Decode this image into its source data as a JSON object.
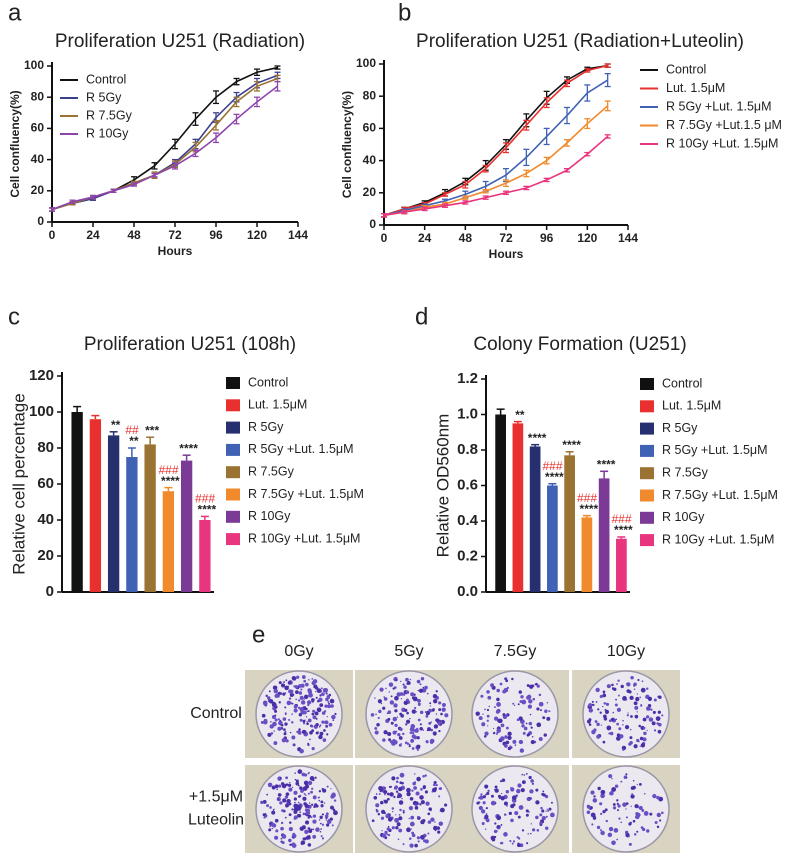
{
  "chart_data": [
    {
      "type": "line",
      "panel": "a",
      "title": "Proliferation U251 (Radiation)",
      "xlabel": "Hours",
      "ylabel": "Cell confluency(%)",
      "x": [
        0,
        12,
        24,
        36,
        48,
        60,
        72,
        84,
        96,
        108,
        120,
        132
      ],
      "xlim": [
        0,
        144
      ],
      "xticks": [
        0,
        24,
        48,
        72,
        96,
        120,
        144
      ],
      "ylim": [
        0,
        100
      ],
      "yticks": [
        0,
        20,
        40,
        60,
        80,
        100
      ],
      "legend": "upper left",
      "series": [
        {
          "name": "Control",
          "color": "#111111",
          "values": [
            8,
            12,
            15,
            20,
            27,
            36,
            50,
            66,
            80,
            90,
            96,
            99
          ],
          "errors": [
            1,
            1,
            1,
            1,
            2,
            2,
            3,
            4,
            4,
            2,
            2,
            1
          ]
        },
        {
          "name": "R 5Gy",
          "color": "#3b3f8f",
          "values": [
            8,
            12,
            15,
            20,
            25,
            30,
            38,
            50,
            67,
            80,
            89,
            94
          ],
          "errors": [
            1,
            1,
            1,
            1,
            1,
            2,
            2,
            3,
            3,
            3,
            3,
            2
          ]
        },
        {
          "name": "R 7.5Gy",
          "color": "#9a7232",
          "values": [
            8,
            12,
            16,
            20,
            25,
            30,
            37,
            48,
            62,
            77,
            87,
            92
          ],
          "errors": [
            1,
            1,
            1,
            1,
            1,
            2,
            2,
            3,
            3,
            3,
            3,
            2
          ]
        },
        {
          "name": "R 10Gy",
          "color": "#8e44ad",
          "values": [
            8,
            13,
            16,
            20,
            24,
            30,
            36,
            44,
            54,
            66,
            77,
            87
          ],
          "errors": [
            1,
            1,
            1,
            1,
            1,
            1,
            2,
            2,
            3,
            3,
            3,
            3
          ]
        }
      ]
    },
    {
      "type": "line",
      "panel": "b",
      "title": "Proliferation U251 (Radiation+Luteolin)",
      "xlabel": "Hours",
      "ylabel": "Cell confluency(%)",
      "x": [
        0,
        12,
        24,
        36,
        48,
        60,
        72,
        84,
        96,
        108,
        120,
        132
      ],
      "xlim": [
        0,
        144
      ],
      "xticks": [
        0,
        24,
        48,
        72,
        96,
        120,
        144
      ],
      "ylim": [
        0,
        100
      ],
      "yticks": [
        0,
        20,
        40,
        60,
        80,
        100
      ],
      "legend": "right",
      "series": [
        {
          "name": "Control",
          "color": "#111111",
          "values": [
            6,
            10,
            14,
            20,
            27,
            37,
            50,
            65,
            79,
            90,
            97,
            99
          ],
          "errors": [
            1,
            1,
            1,
            2,
            2,
            3,
            3,
            4,
            4,
            2,
            1,
            1
          ]
        },
        {
          "name": "Lut. 1.5μM",
          "color": "#e8312f",
          "values": [
            6,
            10,
            13,
            19,
            25,
            35,
            48,
            62,
            76,
            88,
            96,
            99
          ],
          "errors": [
            1,
            1,
            1,
            1,
            2,
            2,
            3,
            3,
            3,
            2,
            1,
            1
          ]
        },
        {
          "name": "R 5Gy +Lut. 1.5μM",
          "color": "#3f62b5",
          "values": [
            6,
            9,
            12,
            15,
            19,
            24,
            31,
            42,
            55,
            68,
            82,
            90
          ],
          "errors": [
            1,
            1,
            1,
            1,
            2,
            3,
            4,
            5,
            5,
            5,
            5,
            4
          ]
        },
        {
          "name": "R 7.5Gy +Lut.1.5 μM",
          "color": "#f08a2c",
          "values": [
            6,
            8,
            11,
            13,
            17,
            21,
            26,
            32,
            40,
            51,
            63,
            74
          ],
          "errors": [
            1,
            1,
            1,
            1,
            1,
            1,
            2,
            2,
            2,
            2,
            3,
            3
          ]
        },
        {
          "name": "R 10Gy +Lut. 1.5μM",
          "color": "#e8357d",
          "values": [
            6,
            8,
            10,
            12,
            14,
            17,
            20,
            23,
            28,
            34,
            44,
            55
          ],
          "errors": [
            1,
            1,
            1,
            1,
            1,
            1,
            1,
            1,
            1,
            1,
            1,
            1
          ]
        }
      ]
    },
    {
      "type": "bar",
      "panel": "c",
      "title": "Proliferation U251 (108h)",
      "ylabel": "Relative cell percentage",
      "categories": [
        "Control",
        "Lut. 1.5μM",
        "R 5Gy",
        "R 5Gy +Lut. 1.5μM",
        "R 7.5Gy",
        "R 7.5Gy +Lut. 1.5μM",
        "R 10Gy",
        "R 10Gy +Lut. 1.5μM"
      ],
      "values": [
        100,
        96,
        87,
        75,
        82,
        56,
        73,
        40
      ],
      "errors": [
        3,
        2,
        2,
        5,
        4,
        2,
        3,
        2
      ],
      "colors": [
        "#111111",
        "#e8312f",
        "#27306e",
        "#3f62b5",
        "#9a7232",
        "#f08a2c",
        "#7a3a96",
        "#e8357d"
      ],
      "stars": [
        null,
        null,
        "**",
        "**",
        "***",
        "****",
        "****",
        "****"
      ],
      "hashes": [
        null,
        null,
        null,
        "##",
        null,
        "###",
        null,
        "###"
      ],
      "hash_color": "#e8312f",
      "ylim": [
        0,
        120
      ],
      "yticks": [
        0,
        20,
        40,
        60,
        80,
        100,
        120
      ],
      "legend": "right"
    },
    {
      "type": "bar",
      "panel": "d",
      "title": "Colony Formation (U251)",
      "ylabel": "Relative OD560nm",
      "categories": [
        "Control",
        "Lut. 1.5μM",
        "R 5Gy",
        "R 5Gy +Lut. 1.5μM",
        "R 7.5Gy",
        "R 7.5Gy +Lut. 1.5μM",
        "R 10Gy",
        "R 10Gy +Lut. 1.5μM"
      ],
      "values": [
        1.0,
        0.95,
        0.82,
        0.6,
        0.77,
        0.42,
        0.64,
        0.3
      ],
      "errors": [
        0.03,
        0.01,
        0.01,
        0.01,
        0.02,
        0.01,
        0.04,
        0.01
      ],
      "colors": [
        "#111111",
        "#e8312f",
        "#27306e",
        "#3f62b5",
        "#9a7232",
        "#f08a2c",
        "#7a3a96",
        "#e8357d"
      ],
      "stars": [
        null,
        "**",
        "****",
        "****",
        "****",
        "****",
        "****",
        "****"
      ],
      "hashes": [
        null,
        null,
        null,
        "###",
        null,
        "###",
        null,
        "###"
      ],
      "hash_color": "#e8312f",
      "ylim": [
        0,
        1.2
      ],
      "yticks": [
        {
          "value": 0,
          "label": "0.0"
        },
        0.2,
        0.4,
        0.6,
        0.8,
        {
          "value": 1,
          "label": "1.0"
        },
        1.2
      ],
      "legend": "right"
    }
  ],
  "panel_e": {
    "label": "e",
    "columns": [
      "0Gy",
      "5Gy",
      "7.5Gy",
      "10Gy"
    ],
    "rows": [
      [
        "Control"
      ],
      [
        "+1.5μM",
        "Luteolin"
      ]
    ]
  }
}
